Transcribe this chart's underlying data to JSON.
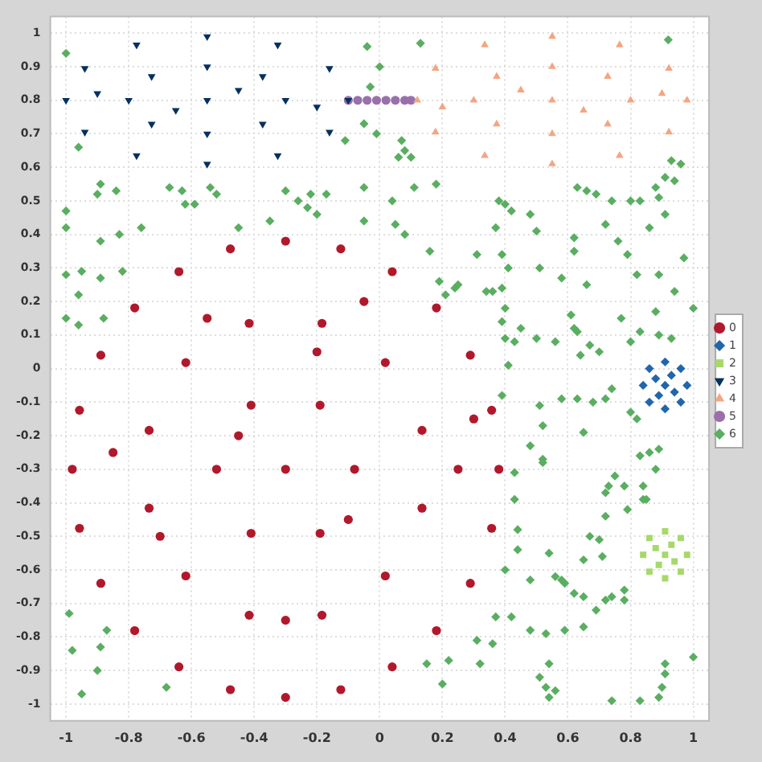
{
  "chart_data": {
    "type": "scatter",
    "xlim": [
      -1.05,
      1.05
    ],
    "ylim": [
      -1.05,
      1.05
    ],
    "xticks": [
      -1,
      -0.8,
      -0.6,
      -0.4,
      -0.2,
      0,
      0.2,
      0.4,
      0.6,
      0.8,
      1
    ],
    "yticks": [
      -1,
      -0.9,
      -0.8,
      -0.7,
      -0.6,
      -0.5,
      -0.4,
      -0.3,
      -0.2,
      -0.1,
      0,
      0.1,
      0.2,
      0.3,
      0.4,
      0.5,
      0.6,
      0.7,
      0.8,
      0.9,
      1
    ],
    "grid": true,
    "legend": "right",
    "line_style": "dotted",
    "series": [
      {
        "name": "0",
        "color": "#b2182b",
        "marker": "circle",
        "x": [
          0.38,
          0.357,
          0.289,
          0.181,
          0.04,
          -0.124,
          -0.3,
          -0.476,
          -0.64,
          -0.781,
          -0.889,
          -0.957,
          -0.98,
          -0.957,
          -0.889,
          -0.781,
          -0.64,
          -0.476,
          -0.3,
          -0.124,
          0.04,
          0.181,
          0.289,
          0.357,
          0.135,
          0.018,
          -0.184,
          -0.416,
          -0.618,
          -0.735,
          -0.735,
          -0.618,
          -0.416,
          -0.184,
          0.018,
          0.135,
          -0.08,
          -0.19,
          -0.41,
          -0.52,
          -0.41,
          -0.19,
          -0.3,
          -0.05,
          -0.55,
          0.25,
          -0.85,
          -0.3,
          -0.1,
          -0.45,
          0.3,
          -0.7,
          -0.2
        ],
        "values": [
          -0.3,
          -0.124,
          0.04,
          0.181,
          0.289,
          0.357,
          0.38,
          0.357,
          0.289,
          0.181,
          0.04,
          -0.124,
          -0.3,
          -0.476,
          -0.64,
          -0.781,
          -0.889,
          -0.957,
          -0.98,
          -0.957,
          -0.889,
          -0.781,
          -0.64,
          -0.476,
          -0.184,
          0.018,
          0.135,
          0.135,
          0.018,
          -0.184,
          -0.416,
          -0.618,
          -0.735,
          -0.735,
          -0.618,
          -0.416,
          -0.3,
          -0.109,
          -0.109,
          -0.3,
          -0.491,
          -0.491,
          -0.3,
          0.2,
          0.15,
          -0.3,
          -0.25,
          -0.75,
          -0.45,
          -0.2,
          -0.15,
          -0.5,
          0.05
        ]
      },
      {
        "name": "1",
        "color": "#2166ac",
        "marker": "diamond",
        "x": [
          0.84,
          0.98,
          0.91,
          0.91,
          0.86,
          0.96,
          0.86,
          0.96,
          0.91,
          0.88,
          0.94,
          0.89,
          0.93
        ],
        "values": [
          -0.05,
          -0.05,
          0.02,
          -0.12,
          0.0,
          0.0,
          -0.1,
          -0.1,
          -0.05,
          -0.03,
          -0.07,
          -0.08,
          -0.02
        ]
      },
      {
        "name": "2",
        "color": "#a6d96a",
        "marker": "square",
        "x": [
          0.84,
          0.98,
          0.91,
          0.91,
          0.86,
          0.96,
          0.86,
          0.96,
          0.91,
          0.88,
          0.94,
          0.89,
          0.93
        ],
        "values": [
          -0.555,
          -0.555,
          -0.485,
          -0.625,
          -0.505,
          -0.505,
          -0.605,
          -0.605,
          -0.555,
          -0.535,
          -0.575,
          -0.585,
          -0.525
        ]
      },
      {
        "name": "3",
        "color": "#053061",
        "marker": "triangle-down",
        "x": [
          -0.1,
          -0.16,
          -0.325,
          -0.55,
          -0.775,
          -0.94,
          -1.0,
          -0.94,
          -0.775,
          -0.55,
          -0.325,
          -0.16,
          -0.3,
          -0.373,
          -0.55,
          -0.727,
          -0.8,
          -0.727,
          -0.55,
          -0.373,
          -0.55,
          -0.45,
          -0.65,
          -0.2,
          -0.9
        ],
        "values": [
          0.8,
          0.895,
          0.965,
          0.99,
          0.965,
          0.895,
          0.8,
          0.705,
          0.635,
          0.61,
          0.635,
          0.705,
          0.8,
          0.871,
          0.9,
          0.871,
          0.8,
          0.729,
          0.7,
          0.729,
          0.8,
          0.83,
          0.77,
          0.78,
          0.82
        ]
      },
      {
        "name": "4",
        "color": "#f4a582",
        "marker": "triangle",
        "x": [
          0.98,
          0.922,
          0.765,
          0.55,
          0.335,
          0.178,
          0.12,
          0.178,
          0.335,
          0.55,
          0.765,
          0.922,
          0.8,
          0.727,
          0.55,
          0.373,
          0.3,
          0.373,
          0.55,
          0.727,
          0.55,
          0.45,
          0.65,
          0.2,
          0.9
        ],
        "values": [
          0.8,
          0.895,
          0.965,
          0.99,
          0.965,
          0.895,
          0.8,
          0.705,
          0.635,
          0.61,
          0.635,
          0.705,
          0.8,
          0.871,
          0.9,
          0.871,
          0.8,
          0.729,
          0.7,
          0.729,
          0.8,
          0.83,
          0.77,
          0.78,
          0.82
        ]
      },
      {
        "name": "5",
        "color": "#9970ab",
        "marker": "circle",
        "x": [
          -0.1,
          -0.07,
          -0.04,
          -0.01,
          0.02,
          0.05,
          0.08,
          0.1
        ],
        "values": [
          0.8,
          0.8,
          0.8,
          0.8,
          0.8,
          0.8,
          0.8,
          0.8
        ]
      },
      {
        "name": "6",
        "color": "#5aae61",
        "marker": "diamond",
        "x": [
          -1.0,
          -0.04,
          0.13,
          0.92,
          0,
          -0.03,
          -0.96,
          -0.05,
          -0.01,
          -0.11,
          0.07,
          0.08,
          0.06,
          0.1,
          0.93,
          0.96,
          -0.89,
          -0.9,
          -0.84,
          -0.67,
          -0.63,
          -0.62,
          -0.59,
          -0.54,
          -0.52,
          -0.3,
          -0.26,
          -0.22,
          -0.17,
          -0.23,
          -0.2,
          -0.05,
          0.11,
          0.18,
          0.04,
          0.91,
          0.94,
          0.88,
          0.89,
          0.91,
          0.63,
          0.66,
          0.69,
          0.74,
          0.8,
          0.83,
          0.38,
          0.4,
          0.42,
          0.48,
          0.5,
          -1.0,
          -1.0,
          -0.89,
          -0.83,
          -0.76,
          -0.45,
          -0.35,
          -0.05,
          0.05,
          0.08,
          0.37,
          0.72,
          0.86,
          0.76,
          -1.0,
          -0.95,
          -0.89,
          -0.82,
          0.16,
          0.31,
          0.39,
          0.62,
          0.79,
          0.97,
          0.41,
          0.51,
          0.62,
          0.82,
          0.89,
          0.19,
          0.25,
          0.21,
          0.24,
          0.66,
          0.58,
          0.34,
          0.36,
          0.39,
          0.94,
          1.0,
          -0.96,
          -1.0,
          -0.96,
          -0.88,
          0.4,
          0.39,
          0.61,
          0.77,
          0.88,
          0.4,
          0.43,
          0.45,
          0.5,
          0.56,
          0.62,
          0.63,
          0.8,
          0.83,
          0.89,
          0.93,
          0.41,
          0.64,
          0.7,
          0.67,
          0.39,
          0.51,
          0.52,
          0.58,
          0.63,
          0.68,
          0.72,
          0.65,
          0.74,
          0.8,
          0.82,
          0.48,
          0.52,
          0.52,
          0.43,
          0.43,
          0.83,
          0.86,
          0.89,
          0.88,
          0.72,
          0.73,
          0.75,
          0.78,
          0.72,
          0.79,
          0.84,
          0.85,
          0.84,
          0.44,
          0.44,
          0.4,
          0.54,
          0.48,
          0.67,
          0.7,
          0.71,
          0.65,
          0.56,
          0.58,
          0.59,
          0.62,
          0.65,
          0.69,
          0.72,
          0.74,
          0.78,
          0.78,
          0.42,
          0.37,
          0.31,
          0.36,
          0.48,
          0.53,
          0.59,
          0.65,
          -0.99,
          -0.98,
          -0.87,
          -0.89,
          -0.9,
          -0.95,
          -0.68,
          0.15,
          0.2,
          0.22,
          0.32,
          0.54,
          0.51,
          0.53,
          0.56,
          0.54,
          0.74,
          0.83,
          0.89,
          0.9,
          0.91,
          0.91,
          1.0
        ],
        "values": [
          0.94,
          0.96,
          0.97,
          0.98,
          0.9,
          0.84,
          0.66,
          0.73,
          0.7,
          0.68,
          0.68,
          0.65,
          0.63,
          0.63,
          0.62,
          0.61,
          0.55,
          0.52,
          0.53,
          0.54,
          0.53,
          0.49,
          0.49,
          0.54,
          0.52,
          0.53,
          0.5,
          0.52,
          0.52,
          0.48,
          0.46,
          0.54,
          0.54,
          0.55,
          0.5,
          0.57,
          0.56,
          0.54,
          0.51,
          0.46,
          0.54,
          0.53,
          0.52,
          0.5,
          0.5,
          0.5,
          0.5,
          0.49,
          0.47,
          0.46,
          0.41,
          0.47,
          0.42,
          0.38,
          0.4,
          0.42,
          0.42,
          0.44,
          0.44,
          0.43,
          0.4,
          0.42,
          0.43,
          0.42,
          0.38,
          0.28,
          0.29,
          0.27,
          0.29,
          0.35,
          0.34,
          0.34,
          0.35,
          0.34,
          0.33,
          0.3,
          0.3,
          0.39,
          0.28,
          0.28,
          0.26,
          0.25,
          0.22,
          0.24,
          0.25,
          0.27,
          0.23,
          0.23,
          0.24,
          0.23,
          0.18,
          0.22,
          0.15,
          0.13,
          0.15,
          0.18,
          0.14,
          0.16,
          0.15,
          0.17,
          0.09,
          0.08,
          0.12,
          0.09,
          0.08,
          0.12,
          0.11,
          0.08,
          0.11,
          0.1,
          0.09,
          0.01,
          0.04,
          0.05,
          0.07,
          -0.08,
          -0.11,
          -0.17,
          -0.09,
          -0.09,
          -0.1,
          -0.09,
          -0.19,
          -0.06,
          -0.13,
          -0.15,
          -0.23,
          -0.27,
          -0.28,
          -0.31,
          -0.39,
          -0.26,
          -0.25,
          -0.24,
          -0.3,
          -0.37,
          -0.35,
          -0.32,
          -0.35,
          -0.44,
          -0.42,
          -0.39,
          -0.39,
          -0.35,
          -0.48,
          -0.54,
          -0.6,
          -0.55,
          -0.63,
          -0.5,
          -0.51,
          -0.56,
          -0.57,
          -0.62,
          -0.63,
          -0.64,
          -0.67,
          -0.68,
          -0.72,
          -0.69,
          -0.68,
          -0.69,
          -0.66,
          -0.74,
          -0.74,
          -0.81,
          -0.82,
          -0.78,
          -0.79,
          -0.78,
          -0.77,
          -0.73,
          -0.84,
          -0.78,
          -0.83,
          -0.9,
          -0.97,
          -0.95,
          -0.88,
          -0.94,
          -0.87,
          -0.88,
          -0.88,
          -0.92,
          -0.95,
          -0.96,
          -0.98,
          -0.99,
          -0.99,
          -0.98,
          -0.95,
          -0.91,
          -0.88,
          -0.86
        ]
      }
    ]
  }
}
